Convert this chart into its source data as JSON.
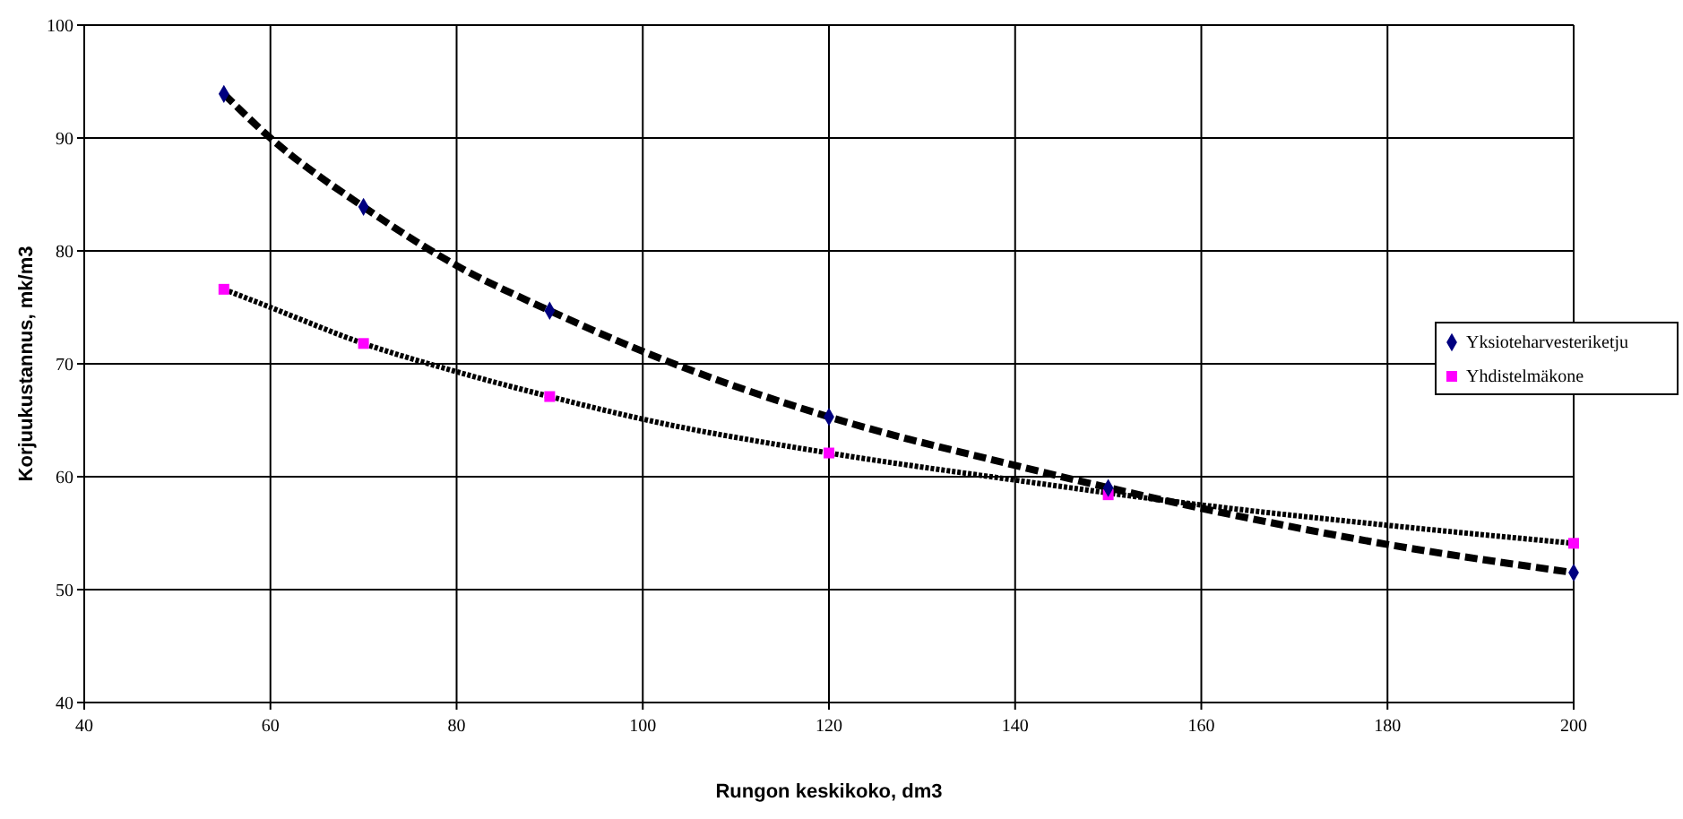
{
  "chart_data": {
    "type": "scatter",
    "xlabel": "Rungon keskikoko, dm3",
    "ylabel": "Korjuukustannus, mk/m3",
    "xlim": [
      40,
      200
    ],
    "xticks": [
      40,
      60,
      80,
      100,
      120,
      140,
      160,
      180,
      200
    ],
    "ylim": [
      40,
      100
    ],
    "yticks": [
      40,
      50,
      60,
      70,
      80,
      90,
      100
    ],
    "grid": true,
    "legend": "right",
    "series": [
      {
        "name": "Yksioteharvesteriketju",
        "color": "#000080",
        "marker": "diamond",
        "x": [
          55,
          70,
          90,
          120,
          150,
          200
        ],
        "values": [
          93.9,
          83.9,
          74.7,
          65.3,
          59,
          51.5
        ]
      },
      {
        "name": "Yhdistelmäkone",
        "color": "#ff00ff",
        "marker": "square",
        "x": [
          55,
          70,
          90,
          120,
          150,
          200
        ],
        "values": [
          76.6,
          71.8,
          67.1,
          62.1,
          58.4,
          54.1
        ]
      },
      {
        "type": "line",
        "color": "#000000",
        "line_style": "dashed",
        "marker": "none",
        "x": [
          55,
          60,
          70,
          80,
          90,
          100,
          120,
          140,
          160,
          180,
          200
        ],
        "values": [
          93.9,
          90,
          83.9,
          78.7,
          74.7,
          71.1,
          65.3,
          61,
          57.2,
          54,
          51.5
        ]
      },
      {
        "type": "line",
        "color": "#000000",
        "line_style": "dotted",
        "marker": "none",
        "x": [
          55,
          60,
          70,
          80,
          90,
          100,
          120,
          140,
          160,
          180,
          200
        ],
        "values": [
          76.6,
          75,
          71.8,
          69.3,
          67.1,
          65.1,
          62.1,
          59.7,
          57.5,
          55.7,
          54.1
        ]
      }
    ]
  }
}
